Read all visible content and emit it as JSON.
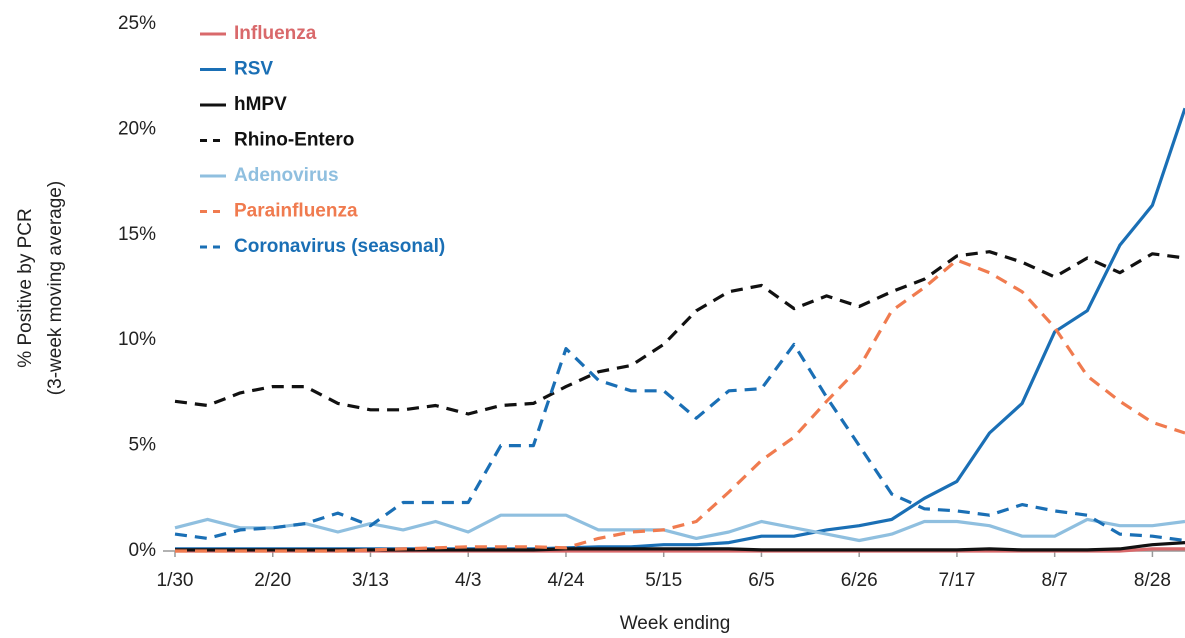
{
  "chart_data": {
    "type": "line",
    "y_label": [
      "% Positive by PCR",
      "(3-week moving average)"
    ],
    "x_label": "Week ending",
    "categories": [
      "1/30",
      null,
      null,
      "2/20",
      null,
      null,
      "3/13",
      null,
      null,
      "4/3",
      null,
      null,
      "4/24",
      null,
      null,
      "5/15",
      null,
      null,
      "6/5",
      null,
      null,
      "6/26",
      null,
      null,
      "7/17",
      null,
      null,
      "8/7",
      null,
      null,
      "8/28",
      null
    ],
    "ylim": [
      0,
      25
    ],
    "yticks": [
      {
        "value": 0,
        "label": "0%"
      },
      {
        "value": 5,
        "label": "5%"
      },
      {
        "value": 10,
        "label": "10%"
      },
      {
        "value": 15,
        "label": "15%"
      },
      {
        "value": 20,
        "label": "20%"
      },
      {
        "value": 25,
        "label": "25%"
      }
    ],
    "legend": "upper left",
    "series": [
      {
        "name": "Influenza",
        "color": "#d9696b",
        "dashed": false,
        "values": [
          0,
          0,
          0,
          0,
          0,
          0,
          0,
          0,
          0,
          0,
          0,
          0,
          0,
          0,
          0,
          0,
          0,
          0,
          0,
          0,
          0,
          0,
          0,
          0,
          0,
          0,
          0,
          0,
          0,
          0,
          0.1,
          0.1
        ]
      },
      {
        "name": "RSV",
        "color": "#1a6fb5",
        "dashed": false,
        "values": [
          0.1,
          0.1,
          0.1,
          0.1,
          0.1,
          0.1,
          0.1,
          0.1,
          0.1,
          0.1,
          0.1,
          0.1,
          0.15,
          0.2,
          0.2,
          0.3,
          0.3,
          0.4,
          0.7,
          0.7,
          1.0,
          1.2,
          1.5,
          2.5,
          3.3,
          5.6,
          7.0,
          10.4,
          11.4,
          14.5,
          16.4,
          21
        ]
      },
      {
        "name": "hMPV",
        "color": "#111111",
        "dashed": false,
        "values": [
          0.05,
          0.05,
          0.05,
          0.05,
          0.05,
          0.05,
          0.05,
          0.05,
          0.05,
          0.05,
          0.05,
          0.05,
          0.1,
          0.1,
          0.1,
          0.1,
          0.1,
          0.1,
          0.05,
          0.05,
          0.05,
          0.05,
          0.05,
          0.05,
          0.05,
          0.1,
          0.05,
          0.05,
          0.05,
          0.1,
          0.3,
          0.4
        ]
      },
      {
        "name": "Rhino-Entero",
        "color": "#111111",
        "dashed": true,
        "values": [
          7.1,
          6.9,
          7.5,
          7.8,
          7.8,
          7.0,
          6.7,
          6.7,
          6.9,
          6.5,
          6.9,
          7.0,
          7.8,
          8.5,
          8.8,
          9.8,
          11.4,
          12.3,
          12.6,
          11.5,
          12.1,
          11.6,
          12.3,
          12.9,
          14.0,
          14.2,
          13.7,
          13.0,
          13.9,
          13.2,
          14.1,
          13.9
        ]
      },
      {
        "name": "Adenovirus",
        "color": "#8fbfdf",
        "dashed": false,
        "values": [
          1.1,
          1.5,
          1.1,
          1.1,
          1.3,
          0.9,
          1.3,
          1.0,
          1.4,
          0.9,
          1.7,
          1.7,
          1.7,
          1.0,
          1.0,
          1.0,
          0.6,
          0.9,
          1.4,
          1.1,
          0.8,
          0.5,
          0.8,
          1.4,
          1.4,
          1.2,
          0.7,
          0.7,
          1.5,
          1.2,
          1.2,
          1.4
        ]
      },
      {
        "name": "Parainfluenza",
        "color": "#f07b4f",
        "dashed": true,
        "values": [
          0,
          0,
          0,
          0,
          0,
          0,
          0.05,
          0.1,
          0.15,
          0.2,
          0.2,
          0.2,
          0.15,
          0.6,
          0.9,
          1.0,
          1.4,
          2.8,
          4.3,
          5.4,
          7.1,
          8.7,
          11.4,
          12.5,
          13.8,
          13.2,
          12.3,
          10.6,
          8.3,
          7.1,
          6.1,
          5.6
        ]
      },
      {
        "name": "Coronavirus (seasonal)",
        "color": "#1a6fb5",
        "dashed": true,
        "values": [
          0.8,
          0.6,
          1.0,
          1.1,
          1.3,
          1.8,
          1.2,
          2.3,
          2.3,
          2.3,
          5.0,
          5.0,
          9.6,
          8.1,
          7.6,
          7.6,
          6.3,
          7.6,
          7.7,
          9.8,
          7.3,
          5.0,
          2.7,
          2.0,
          1.9,
          1.7,
          2.2,
          1.9,
          1.7,
          0.8,
          0.7,
          0.5
        ]
      }
    ]
  }
}
